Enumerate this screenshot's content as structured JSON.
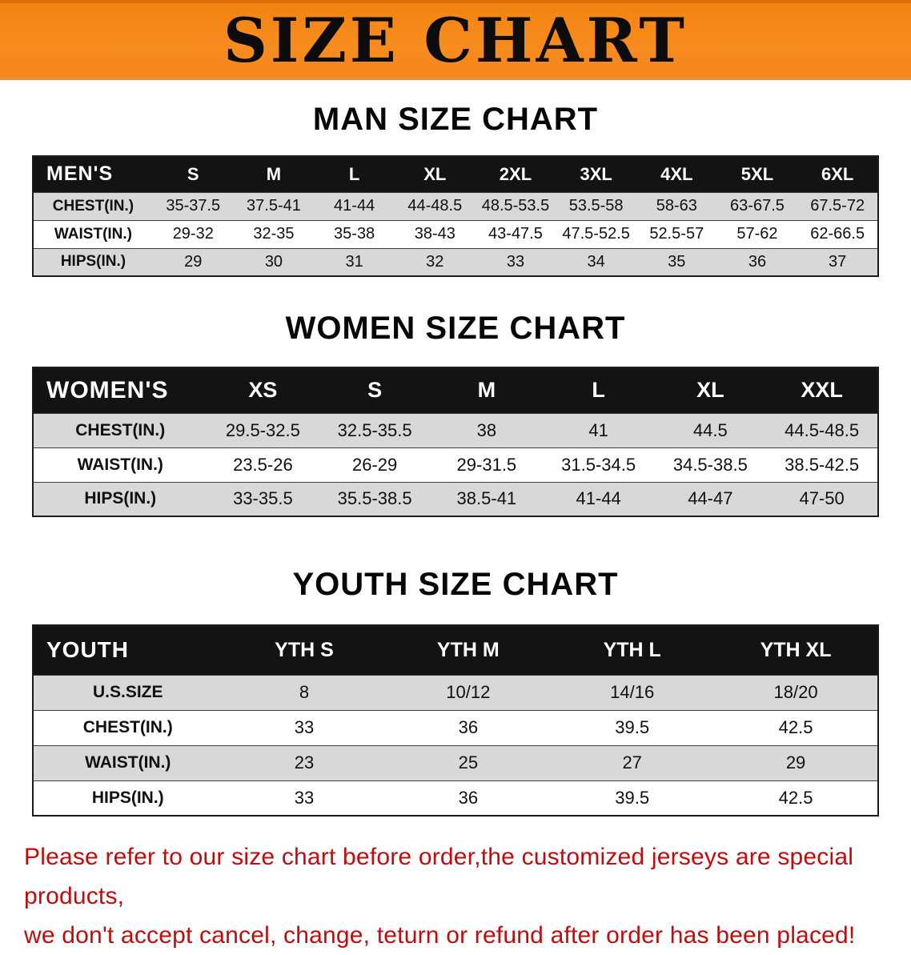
{
  "banner": {
    "title": "SIZE CHART"
  },
  "sections": {
    "men": {
      "heading": "MAN SIZE CHART",
      "table": {
        "header": [
          "MEN'S",
          "S",
          "M",
          "L",
          "XL",
          "2XL",
          "3XL",
          "4XL",
          "5XL",
          "6XL"
        ],
        "rows": [
          [
            "CHEST(IN.)",
            "35-37.5",
            "37.5-41",
            "41-44",
            "44-48.5",
            "48.5-53.5",
            "53.5-58",
            "58-63",
            "63-67.5",
            "67.5-72"
          ],
          [
            "WAIST(IN.)",
            "29-32",
            "32-35",
            "35-38",
            "38-43",
            "43-47.5",
            "47.5-52.5",
            "52.5-57",
            "57-62",
            "62-66.5"
          ],
          [
            "HIPS(IN.)",
            "29",
            "30",
            "31",
            "32",
            "33",
            "34",
            "35",
            "36",
            "37"
          ]
        ]
      }
    },
    "women": {
      "heading": "WOMEN SIZE CHART",
      "table": {
        "header": [
          "WOMEN'S",
          "XS",
          "S",
          "M",
          "L",
          "XL",
          "XXL"
        ],
        "rows": [
          [
            "CHEST(IN.)",
            "29.5-32.5",
            "32.5-35.5",
            "38",
            "41",
            "44.5",
            "44.5-48.5"
          ],
          [
            "WAIST(IN.)",
            "23.5-26",
            "26-29",
            "29-31.5",
            "31.5-34.5",
            "34.5-38.5",
            "38.5-42.5"
          ],
          [
            "HIPS(IN.)",
            "33-35.5",
            "35.5-38.5",
            "38.5-41",
            "41-44",
            "44-47",
            "47-50"
          ]
        ]
      }
    },
    "youth": {
      "heading": "YOUTH SIZE CHART",
      "table": {
        "header": [
          "YOUTH",
          "YTH S",
          "YTH M",
          "YTH L",
          "YTH XL"
        ],
        "rows": [
          [
            "U.S.SIZE",
            "8",
            "10/12",
            "14/16",
            "18/20"
          ],
          [
            "CHEST(IN.)",
            "33",
            "36",
            "39.5",
            "42.5"
          ],
          [
            "WAIST(IN.)",
            "23",
            "25",
            "27",
            "29"
          ],
          [
            "HIPS(IN.)",
            "33",
            "36",
            "39.5",
            "42.5"
          ]
        ]
      }
    }
  },
  "footer": {
    "line1": "Please refer to our size chart before order,the customized jerseys are special products,",
    "line2": "we don't accept cancel, change, teturn or refund after order has been placed!"
  },
  "colors": {
    "banner_orange": "#F5861D",
    "table_header_black": "#131313",
    "row_gray": "#D8D8D8",
    "notice_red": "#C40B0C"
  }
}
